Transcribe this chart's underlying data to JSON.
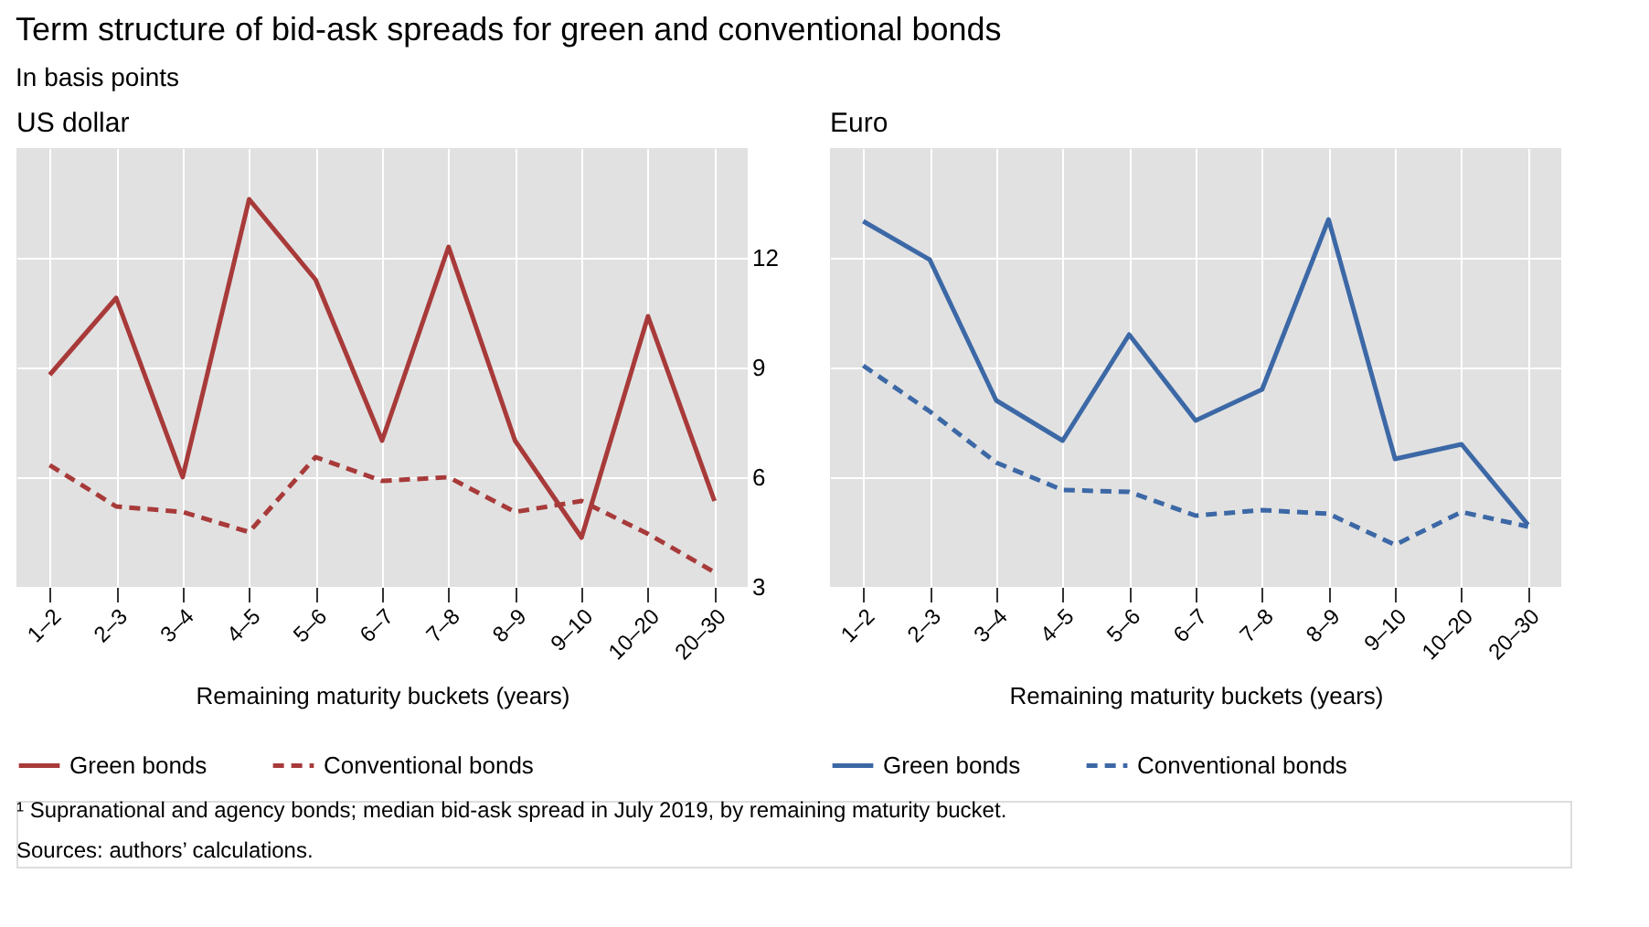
{
  "chart_data": [
    {
      "type": "line",
      "title": "Term structure of bid-ask spreads for green and conventional bonds",
      "subtitle": "In basis points",
      "xlabel": "Remaining maturity buckets (years)",
      "categories": [
        "1–2",
        "2–3",
        "3–4",
        "4–5",
        "5–6",
        "6–7",
        "7–8",
        "8–9",
        "9–10",
        "10–20",
        "20–30"
      ],
      "ylim": [
        3,
        15
      ],
      "yticks": [
        3,
        6,
        9,
        12
      ],
      "grid": true,
      "legend": "bottom",
      "annotations": [
        "US dollar"
      ],
      "series": [
        {
          "name": "Green bonds",
          "color": "#a83a3a",
          "line_style": "solid",
          "values": [
            8.8,
            10.9,
            6.0,
            13.6,
            11.4,
            7.0,
            12.3,
            7.0,
            4.35,
            10.4,
            5.35
          ]
        },
        {
          "name": "Conventional bonds",
          "color": "#a83a3a",
          "line_style": "dashed",
          "values": [
            6.33,
            5.2,
            5.05,
            4.5,
            6.55,
            5.9,
            6.0,
            5.05,
            5.35,
            4.45,
            3.4
          ]
        }
      ]
    },
    {
      "type": "line",
      "xlabel": "Remaining maturity buckets (years)",
      "categories": [
        "1–2",
        "2–3",
        "3–4",
        "4–5",
        "5–6",
        "6–7",
        "7–8",
        "8–9",
        "9–10",
        "10–20",
        "20–30"
      ],
      "ylim": [
        3,
        15
      ],
      "yticks": [
        3,
        6,
        9,
        12
      ],
      "grid": true,
      "legend": "bottom",
      "tick_labels": "x",
      "annotations": [
        "Euro",
        "¹ Supranational and agency bonds; median bid-ask spread in July 2019, by remaining maturity bucket.",
        "Sources: authors’ calculations."
      ],
      "series": [
        {
          "name": "Green bonds",
          "color": "#3c68a6",
          "line_style": "solid",
          "values": [
            13.0,
            11.95,
            8.1,
            7.0,
            9.9,
            7.55,
            8.4,
            13.05,
            6.5,
            6.9,
            4.7
          ]
        },
        {
          "name": "Conventional bonds",
          "color": "#3c68a6",
          "line_style": "dashed",
          "values": [
            9.05,
            7.8,
            6.4,
            5.65,
            5.6,
            4.95,
            5.1,
            5.0,
            4.15,
            5.05,
            4.65
          ]
        }
      ]
    }
  ]
}
